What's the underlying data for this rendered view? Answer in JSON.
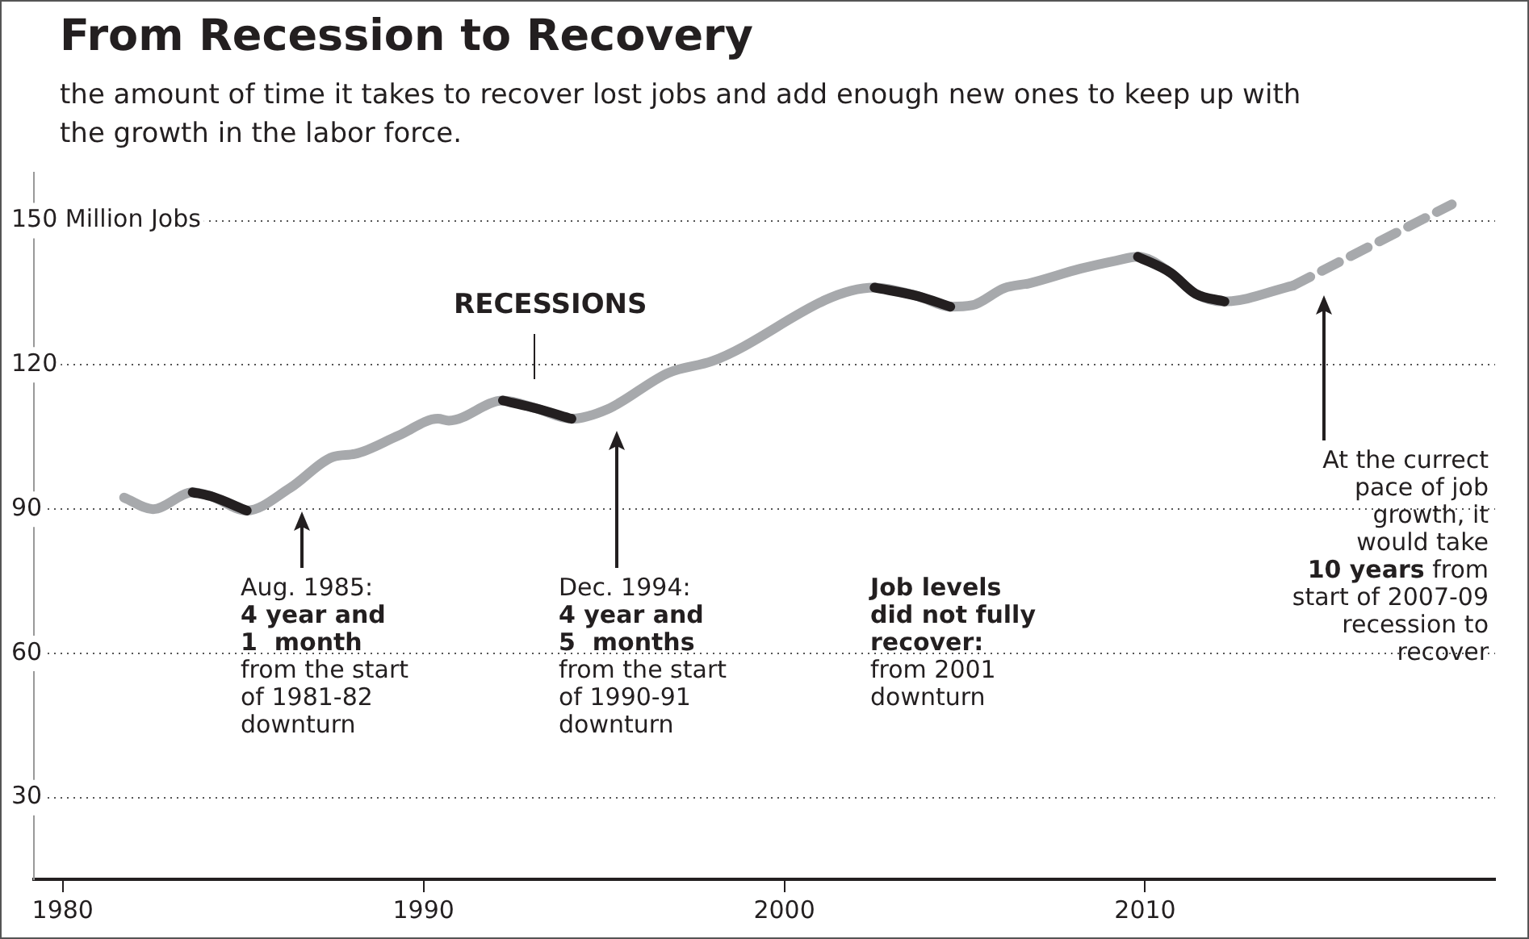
{
  "chart_data": {
    "type": "line",
    "title": "From Recession to Recovery",
    "subtitle": "the amount of time it takes to recover lost jobs and add enough new ones to keep up with the growth in the labor force.",
    "xlim": [
      1979.2,
      2019.7
    ],
    "xticks": [
      1980,
      1990,
      2000,
      2010
    ],
    "ylim": [
      13,
      160
    ],
    "yticks": [
      {
        "value": 150,
        "label": "150 Million Jobs"
      },
      120,
      90,
      60,
      30
    ],
    "grid": "y",
    "series": [
      {
        "color": "#a7a9ac",
        "x": [
          1981.7,
          1982.5,
          1983.6,
          1984.1,
          1985.1,
          1986.3,
          1987.5,
          1988.1,
          1989.3,
          1990.4,
          1990.7,
          1992.2,
          1993.1,
          1994.1,
          1995.1,
          1996.8,
          1998.0,
          2002.5,
          2003.7,
          2004.6,
          2005.2,
          2006.1,
          2006.8,
          2008.2,
          2009.2,
          2009.8,
          2010.7,
          2011.4,
          2012.2,
          2014.1
        ],
        "values": [
          92.4,
          90.0,
          93.5,
          92.7,
          89.7,
          94.4,
          100.9,
          101.5,
          105.3,
          108.8,
          108.4,
          112.6,
          111.0,
          108.8,
          110.8,
          118.4,
          120.8,
          136.1,
          134.3,
          132.1,
          132.4,
          136.0,
          137.0,
          140.0,
          141.7,
          142.5,
          139.2,
          134.8,
          133.2,
          136.5
        ]
      },
      {
        "color": "#231f20",
        "x": [
          1983.6,
          1984.1,
          1985.1
        ],
        "values": [
          93.5,
          92.7,
          89.7
        ]
      },
      {
        "color": "#231f20",
        "x": [
          1992.2,
          1993.1,
          1994.1
        ],
        "values": [
          112.6,
          111.0,
          108.8
        ]
      },
      {
        "color": "#231f20",
        "x": [
          2002.5,
          2003.7,
          2004.6
        ],
        "values": [
          136.1,
          134.3,
          132.1
        ]
      },
      {
        "color": "#231f20",
        "x": [
          2009.8,
          2010.7,
          2011.4,
          2012.2
        ],
        "values": [
          142.5,
          139.2,
          134.8,
          133.2
        ]
      },
      {
        "color": "#a7a9ac",
        "line_style": "dashed",
        "x": [
          2014.1,
          2018.5
        ],
        "values": [
          136.5,
          153.4
        ]
      }
    ],
    "annotations": [
      "RECESSIONS",
      "Aug. 1985:\n4 year and\n1  month\nfrom the start\nof 1981-82\ndownturn",
      "Dec. 1994:\n4 year and\n5  months\nfrom the start\nof 1990-91\ndownturn",
      "Job levels\ndid not fully\nrecover:\nfrom 2001\ndownturn",
      "At the currect\npace of job\ngrowth, it\nwould take\n10 years from\nstart of 2007-09\nrecession to\nrecover"
    ]
  }
}
